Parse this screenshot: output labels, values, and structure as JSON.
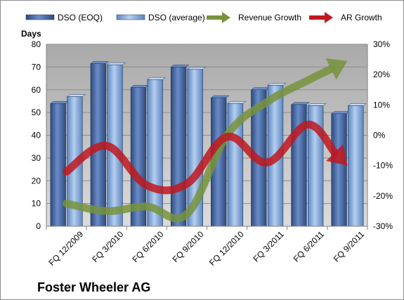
{
  "chart_data": {
    "type": "bar",
    "title": "Foster Wheeler AG",
    "ylabel": "Days",
    "ylim": [
      0,
      80
    ],
    "yticks": [
      0,
      10,
      20,
      30,
      40,
      50,
      60,
      70,
      80
    ],
    "y2lim": [
      -30,
      30
    ],
    "y2ticks": [
      "-30%",
      "-20%",
      "-10%",
      "0%",
      "10%",
      "20%",
      "30%"
    ],
    "y2tick_values": [
      -30,
      -20,
      -10,
      0,
      10,
      20,
      30
    ],
    "categories": [
      "FQ 12/2009",
      "FQ 3/2010",
      "FQ 6/2010",
      "FQ 9/2010",
      "FQ 12/2010",
      "FQ 3/2011",
      "FQ 6/2011",
      "FQ 9/2011"
    ],
    "series": [
      {
        "name": "DSO (EOQ)",
        "type": "bar",
        "axis": "left",
        "color": "#4F6FA8",
        "values": [
          54,
          71.5,
          61,
          70,
          56.5,
          60,
          53.5,
          49.5
        ]
      },
      {
        "name": "DSO (average)",
        "type": "bar",
        "axis": "left",
        "color": "#8EB4E3",
        "values": [
          57,
          71,
          64.5,
          69,
          54,
          62,
          53,
          53
        ]
      },
      {
        "name": "Revenue Growth",
        "type": "arrow-line",
        "axis": "right",
        "color": "#77933C",
        "values": [
          -22.5,
          -25,
          -23.5,
          -26,
          0,
          11,
          18,
          24.5
        ]
      },
      {
        "name": "AR Growth",
        "type": "arrow-line",
        "axis": "right",
        "color": "#C0181F",
        "values": [
          -12,
          -3.5,
          -16.5,
          -16,
          -0.5,
          -9,
          3.5,
          -10
        ]
      }
    ],
    "grid": true,
    "legend": "top",
    "plot_background": "#C0C0C0"
  }
}
